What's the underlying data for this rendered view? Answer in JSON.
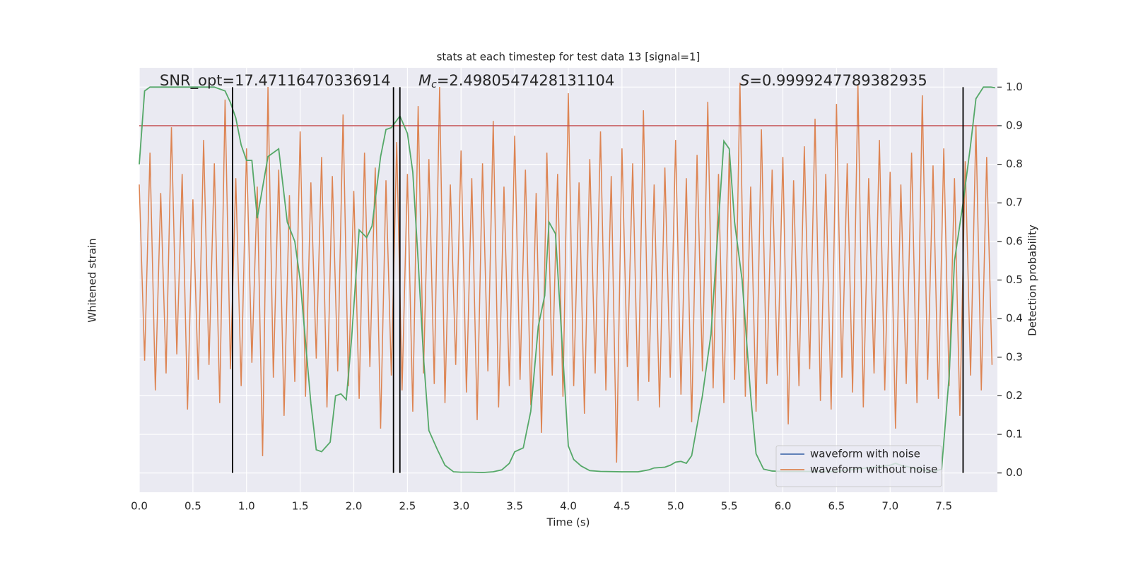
{
  "chart_data": {
    "type": "line",
    "title": "stats at each timestep for test data 13 [signal=1]",
    "xlabel": "Time (s)",
    "ylabel": "Whitened strain",
    "y2label": "Detection probability",
    "annotations": {
      "snr": "SNR_opt=17.47116470336914",
      "mc": {
        "symbol": "M",
        "subscript": "c",
        "text": "=2.4980547428131104"
      },
      "s": {
        "symbol": "S",
        "text": "=0.9999247789382935"
      }
    },
    "xlim": [
      0,
      8
    ],
    "xticks": [
      {
        "value": 0,
        "label": "0.0"
      },
      0.5,
      {
        "value": 1,
        "label": "1.0"
      },
      1.5,
      {
        "value": 2,
        "label": "2.0"
      },
      2.5,
      {
        "value": 3,
        "label": "3.0"
      },
      3.5,
      {
        "value": 4,
        "label": "4.0"
      },
      4.5,
      {
        "value": 5,
        "label": "5.0"
      },
      5.5,
      {
        "value": 6,
        "label": "6.0"
      },
      6.5,
      {
        "value": 7,
        "label": "7.0"
      },
      7.5
    ],
    "ylim": [
      -1,
      1
    ],
    "y2lim": [
      -0.05,
      1.05
    ],
    "y2ticks": [
      {
        "value": 0,
        "label": "0.0"
      },
      0.1,
      0.2,
      0.3,
      0.4,
      0.5,
      0.6,
      0.7,
      0.8,
      0.9,
      {
        "value": 1,
        "label": "1.0"
      }
    ],
    "grid": true,
    "legend": "lower right",
    "series": [
      {
        "name": "waveform with noise",
        "color": "#4c72b0"
      },
      {
        "name": "waveform without noise",
        "color": "#dd8452",
        "x": [
          0,
          0.05,
          0.1,
          0.15,
          0.2,
          0.25,
          0.3,
          0.35,
          0.4,
          0.45,
          0.5,
          0.55,
          0.6,
          0.65,
          0.7,
          0.75,
          0.8,
          0.85,
          0.9,
          0.95,
          1,
          1.05,
          1.1,
          1.15,
          1.2,
          1.25,
          1.3,
          1.35,
          1.4,
          1.45,
          1.5,
          1.55,
          1.6,
          1.65,
          1.7,
          1.75,
          1.8,
          1.85,
          1.9,
          1.95,
          2,
          2.05,
          2.1,
          2.15,
          2.2,
          2.25,
          2.3,
          2.35,
          2.4,
          2.45,
          2.5,
          2.55,
          2.6,
          2.65,
          2.7,
          2.75,
          2.8,
          2.85,
          2.9,
          2.95,
          3,
          3.05,
          3.1,
          3.15,
          3.2,
          3.25,
          3.3,
          3.35,
          3.4,
          3.45,
          3.5,
          3.55,
          3.6,
          3.65,
          3.7,
          3.75,
          3.8,
          3.85,
          3.9,
          3.95,
          4,
          4.05,
          4.1,
          4.15,
          4.2,
          4.25,
          4.3,
          4.35,
          4.4,
          4.45,
          4.5,
          4.55,
          4.6,
          4.65,
          4.7,
          4.75,
          4.8,
          4.85,
          4.9,
          4.95,
          5,
          5.05,
          5.1,
          5.15,
          5.2,
          5.25,
          5.3,
          5.35,
          5.4,
          5.45,
          5.5,
          5.55,
          5.6,
          5.65,
          5.7,
          5.75,
          5.8,
          5.85,
          5.9,
          5.95,
          6,
          6.05,
          6.1,
          6.15,
          6.2,
          6.25,
          6.3,
          6.35,
          6.4,
          6.45,
          6.5,
          6.55,
          6.6,
          6.65,
          6.7,
          6.75,
          6.8,
          6.85,
          6.9,
          6.95,
          7,
          7.05,
          7.1,
          7.15,
          7.2,
          7.25,
          7.3,
          7.35,
          7.4,
          7.45,
          7.5,
          7.55,
          7.6,
          7.65,
          7.7,
          7.75,
          7.8,
          7.85,
          7.9,
          7.95
        ],
        "values": [
          0.45,
          -0.38,
          0.6,
          -0.52,
          0.41,
          -0.44,
          0.72,
          -0.35,
          0.5,
          -0.61,
          0.38,
          -0.47,
          0.66,
          -0.4,
          0.55,
          -0.58,
          0.85,
          -0.42,
          0.48,
          -0.5,
          0.62,
          -0.39,
          0.44,
          -0.83,
          0.91,
          -0.46,
          0.52,
          -0.64,
          0.4,
          -0.48,
          0.7,
          -0.55,
          0.46,
          -0.37,
          0.58,
          -0.6,
          0.49,
          -0.43,
          0.78,
          -0.5,
          0.42,
          -0.56,
          0.6,
          -0.41,
          0.53,
          -0.7,
          0.47,
          -0.45,
          0.65,
          -0.52,
          0.5,
          -0.62,
          0.82,
          -0.44,
          0.57,
          -0.49,
          0.91,
          -0.58,
          0.45,
          -0.4,
          0.61,
          -0.53,
          0.48,
          -0.66,
          0.55,
          -0.43,
          0.75,
          -0.6,
          0.44,
          -0.5,
          0.68,
          -0.47,
          0.52,
          -0.59,
          0.41,
          -0.72,
          0.6,
          -0.45,
          0.5,
          -0.55,
          0.88,
          -0.5,
          0.46,
          -0.63,
          0.57,
          -0.44,
          0.7,
          -0.52,
          0.49,
          -0.86,
          0.62,
          -0.41,
          0.55,
          -0.57,
          0.8,
          -0.48,
          0.45,
          -0.6,
          0.53,
          -0.46,
          0.66,
          -0.54,
          0.48,
          -0.67,
          0.59,
          -0.43,
          0.84,
          -0.51,
          0.5,
          -0.58,
          0.6,
          -0.47,
          0.93,
          -0.55,
          0.44,
          -0.62,
          0.71,
          -0.49,
          0.52,
          -0.45,
          0.58,
          -0.68,
          0.47,
          -0.5,
          0.63,
          -0.42,
          0.76,
          -0.57,
          0.5,
          -0.61,
          0.83,
          -0.46,
          0.55,
          -0.53,
          0.92,
          -0.6,
          0.48,
          -0.44,
          0.66,
          -0.52,
          0.51,
          -0.7,
          0.45,
          -0.49,
          0.6,
          -0.58,
          0.87,
          -0.47,
          0.54,
          -0.56,
          0.62,
          -0.5,
          0.48,
          -0.64,
          0.56,
          -0.45,
          0.73,
          -0.52,
          0.58,
          -0.4
        ]
      },
      {
        "axis": "y2",
        "color": "#55a868",
        "x": [
          0,
          0.05,
          0.1,
          0.2,
          0.3,
          0.4,
          0.5,
          0.6,
          0.7,
          0.8,
          0.85,
          0.9,
          0.95,
          1,
          1.05,
          1.1,
          1.2,
          1.3,
          1.38,
          1.45,
          1.5,
          1.6,
          1.65,
          1.7,
          1.78,
          1.83,
          1.88,
          1.93,
          1.98,
          2.05,
          2.12,
          2.17,
          2.25,
          2.3,
          2.35,
          2.43,
          2.5,
          2.55,
          2.6,
          2.65,
          2.7,
          2.78,
          2.85,
          2.93,
          3,
          3.1,
          3.2,
          3.3,
          3.38,
          3.45,
          3.5,
          3.58,
          3.65,
          3.72,
          3.78,
          3.82,
          3.88,
          3.95,
          4,
          4.05,
          4.12,
          4.2,
          4.3,
          4.5,
          4.65,
          4.75,
          4.8,
          4.9,
          4.95,
          5,
          5.05,
          5.1,
          5.15,
          5.25,
          5.33,
          5.4,
          5.45,
          5.5,
          5.55,
          5.62,
          5.7,
          5.75,
          5.82,
          5.9,
          6,
          6.5,
          7,
          7.05,
          7.1,
          7.3,
          7.4,
          7.48,
          7.55,
          7.6,
          7.68,
          7.75,
          7.8,
          7.87,
          7.94,
          7.98
        ],
        "values": [
          0.8,
          0.99,
          1,
          1,
          1,
          1,
          1,
          1,
          1,
          0.99,
          0.96,
          0.92,
          0.85,
          0.81,
          0.81,
          0.66,
          0.82,
          0.84,
          0.65,
          0.6,
          0.5,
          0.18,
          0.06,
          0.055,
          0.08,
          0.2,
          0.205,
          0.19,
          0.35,
          0.63,
          0.61,
          0.64,
          0.82,
          0.89,
          0.895,
          0.925,
          0.88,
          0.78,
          0.55,
          0.3,
          0.11,
          0.06,
          0.02,
          0.003,
          0.002,
          0.002,
          0.001,
          0.003,
          0.008,
          0.025,
          0.055,
          0.065,
          0.16,
          0.38,
          0.46,
          0.65,
          0.62,
          0.3,
          0.07,
          0.035,
          0.018,
          0.006,
          0.004,
          0.003,
          0.003,
          0.008,
          0.013,
          0.015,
          0.02,
          0.028,
          0.03,
          0.025,
          0.045,
          0.2,
          0.36,
          0.65,
          0.86,
          0.84,
          0.65,
          0.5,
          0.2,
          0.05,
          0.01,
          0.005,
          0.004,
          0.004,
          0.02,
          0.025,
          0.02,
          0.008,
          0.003,
          0.01,
          0.25,
          0.55,
          0.7,
          0.85,
          0.97,
          1,
          1,
          0.998
        ]
      }
    ],
    "hline": {
      "value": 0.9,
      "color": "#c44e52"
    },
    "vlines": [
      0.87,
      2.37,
      2.43,
      7.68
    ]
  }
}
